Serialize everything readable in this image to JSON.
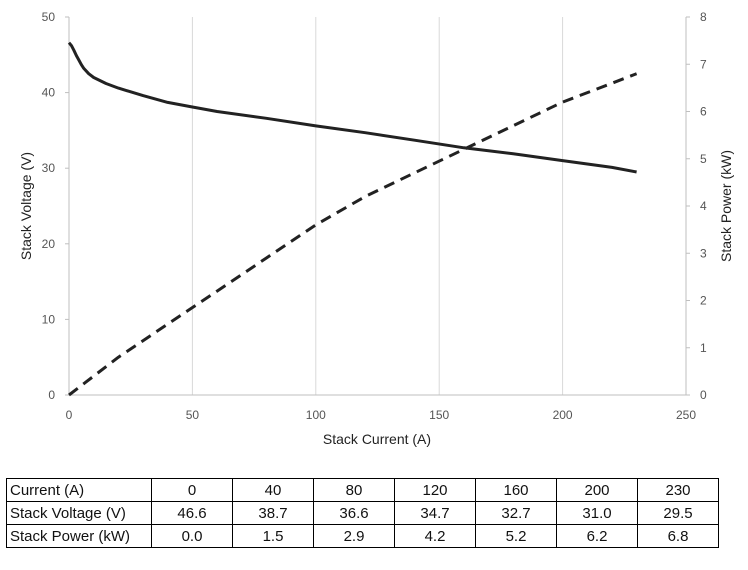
{
  "chart_data": {
    "type": "line",
    "xlabel": "Stack Current (A)",
    "ylabel_left": "Stack Voltage (V)",
    "ylabel_right": "Stack Power (kW)",
    "xlim": [
      0,
      250
    ],
    "ylim_left": [
      0,
      50
    ],
    "ylim_right": [
      0,
      8
    ],
    "x_ticks": [
      0,
      50,
      100,
      150,
      200,
      250
    ],
    "y_left_ticks": [
      0,
      10,
      20,
      30,
      40,
      50
    ],
    "y_right_ticks": [
      0,
      1,
      2,
      3,
      4,
      5,
      6,
      7,
      8
    ],
    "grid": "vertical",
    "series": [
      {
        "axis": "left",
        "style": "solid",
        "x": [
          0,
          1,
          2,
          3,
          4,
          5,
          6,
          8,
          10,
          15,
          20,
          30,
          40,
          50,
          60,
          80,
          100,
          120,
          140,
          160,
          180,
          200,
          220,
          230
        ],
        "values": [
          46.6,
          46.2,
          45.6,
          44.9,
          44.3,
          43.7,
          43.2,
          42.5,
          42.0,
          41.2,
          40.6,
          39.6,
          38.7,
          38.1,
          37.5,
          36.6,
          35.6,
          34.7,
          33.7,
          32.7,
          31.9,
          31.0,
          30.1,
          29.5
        ]
      },
      {
        "axis": "right",
        "style": "dashed",
        "x": [
          0,
          20,
          40,
          60,
          80,
          100,
          120,
          140,
          160,
          180,
          200,
          220,
          230
        ],
        "values": [
          0.0,
          0.8,
          1.5,
          2.2,
          2.9,
          3.6,
          4.2,
          4.7,
          5.2,
          5.7,
          6.2,
          6.6,
          6.8
        ]
      }
    ]
  },
  "table": {
    "rows": [
      {
        "label": "Current (A)",
        "values": [
          "0",
          "40",
          "80",
          "120",
          "160",
          "200",
          "230"
        ]
      },
      {
        "label": "Stack Voltage (V)",
        "values": [
          "46.6",
          "38.7",
          "36.6",
          "34.7",
          "32.7",
          "31.0",
          "29.5"
        ]
      },
      {
        "label": "Stack Power (kW)",
        "values": [
          "0.0",
          "1.5",
          "2.9",
          "4.2",
          "5.2",
          "6.2",
          "6.8"
        ]
      }
    ]
  }
}
